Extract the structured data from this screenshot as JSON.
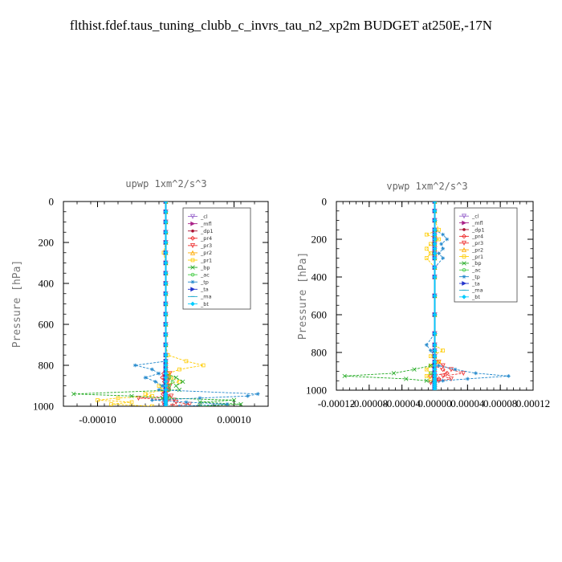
{
  "figure_title": "flthist.fdef.taus_tuning_clubb_c_invrs_tau_n2_xp2m  BUDGET at250E,-17N",
  "series_styles": [
    {
      "name": "_cl",
      "color": "#9966cc",
      "marker": "tri-down"
    },
    {
      "name": "_mfl",
      "color": "#aa2288",
      "marker": "tri-right"
    },
    {
      "name": "_dp1",
      "color": "#aa1133",
      "marker": "dot"
    },
    {
      "name": "_pr4",
      "color": "#ee2222",
      "marker": "diamond"
    },
    {
      "name": "_pr3",
      "color": "#ee3333",
      "marker": "tri-down"
    },
    {
      "name": "_pr2",
      "color": "#ffaa00",
      "marker": "tri-up"
    },
    {
      "name": "_pr1",
      "color": "#ffcc00",
      "marker": "square"
    },
    {
      "name": "_bp",
      "color": "#22aa22",
      "marker": "x"
    },
    {
      "name": "_ac",
      "color": "#44cc44",
      "marker": "circle"
    },
    {
      "name": "_tp",
      "color": "#2288cc",
      "marker": "star"
    },
    {
      "name": "_ta",
      "color": "#2233cc",
      "marker": "tri-right"
    },
    {
      "name": "_ma",
      "color": "#22aacc",
      "marker": "dash"
    },
    {
      "name": "_bt",
      "color": "#00ccff",
      "marker": "diamond-fill"
    }
  ],
  "chart_data": [
    {
      "type": "line",
      "title": "upwp   1xm^2/s^3",
      "ylabel": "Pressure [hPa]",
      "xlim": [
        -0.00015,
        0.00015
      ],
      "ylim": [
        1000,
        0
      ],
      "xticks": [
        -0.0001,
        0,
        0.0001
      ],
      "xtick_labels": [
        "-0.00010",
        "0.00000",
        "0.00010"
      ],
      "yticks": [
        0,
        200,
        400,
        600,
        800,
        1000
      ],
      "ytick_labels": [
        "0",
        "200",
        "400",
        "600",
        "800",
        "1000"
      ],
      "legend": [
        "_cl",
        "_mfl",
        "_dp1",
        "_pr4",
        "_pr3",
        "_pr2",
        "_pr1",
        "_bp",
        "_ac",
        "_tp",
        "_ta",
        "_ma",
        "_bt"
      ],
      "legend_position": "top-right",
      "levels": [
        0,
        50,
        100,
        150,
        200,
        250,
        300,
        350,
        400,
        450,
        500,
        550,
        600,
        650,
        700,
        750,
        780,
        800,
        820,
        840,
        860,
        880,
        900,
        920,
        940,
        950,
        960,
        970,
        980,
        990,
        1000
      ],
      "series": [
        {
          "name": "_cl",
          "values": [
            0,
            0,
            0,
            0,
            0,
            0,
            0,
            0,
            0,
            0,
            0,
            0,
            0,
            0,
            0,
            0,
            0,
            0,
            0,
            0,
            0,
            0,
            0,
            0,
            0,
            0,
            0,
            0,
            0,
            0,
            0
          ]
        },
        {
          "name": "_mfl",
          "values": [
            0,
            0,
            0,
            0,
            0,
            0,
            0,
            0,
            0,
            0,
            0,
            0,
            0,
            0,
            0,
            0,
            0,
            0,
            0,
            0,
            0,
            0,
            0,
            0,
            0,
            0,
            0,
            0,
            0,
            0,
            0
          ]
        },
        {
          "name": "_dp1",
          "values": [
            0,
            0,
            0,
            0,
            0,
            0,
            0,
            0,
            0,
            0,
            0,
            0,
            0,
            0,
            0,
            0,
            0,
            0,
            0,
            0,
            0,
            0,
            0,
            0,
            0,
            0,
            0,
            0,
            0,
            0,
            0
          ]
        },
        {
          "name": "_pr4",
          "values": [
            0,
            0,
            0,
            0,
            0,
            0,
            0,
            0,
            0,
            0,
            0,
            0,
            0,
            0,
            0,
            0,
            0,
            0,
            0,
            -3e-06,
            -5e-06,
            -2e-06,
            2e-06,
            4e-06,
            -4e-06,
            3e-06,
            -2e-06,
            2e-06,
            -3e-06,
            -2e-06,
            0
          ]
        },
        {
          "name": "_pr3",
          "values": [
            0,
            0,
            0,
            0,
            0,
            0,
            0,
            0,
            0,
            0,
            0,
            0,
            0,
            0,
            0,
            0,
            0,
            0,
            0,
            6e-06,
            4e-06,
            3e-06,
            6e-06,
            4e-06,
            -2e-06,
            8e-06,
            -4e-05,
            1.2e-05,
            1.5e-05,
            3.5e-05,
            1e-05
          ]
        },
        {
          "name": "_pr2",
          "values": [
            0,
            0,
            0,
            0,
            0,
            0,
            0,
            0,
            0,
            0,
            0,
            0,
            0,
            0,
            0,
            0,
            0,
            0,
            0,
            0,
            0,
            0,
            0,
            0,
            0,
            0,
            0,
            0,
            0,
            0,
            0
          ]
        },
        {
          "name": "_pr1",
          "values": [
            0,
            0,
            0,
            0,
            0,
            -3e-06,
            0,
            0,
            0,
            0,
            0,
            0,
            0,
            0,
            0,
            3e-06,
            3e-05,
            5.5e-05,
            2e-05,
            4e-06,
            8e-06,
            2e-05,
            -1e-05,
            -5e-06,
            -3e-05,
            -2e-05,
            -7e-05,
            -0.0001,
            -5e-05,
            -8e-05,
            -2e-05
          ]
        },
        {
          "name": "_bp",
          "values": [
            0,
            0,
            0,
            0,
            0,
            0,
            0,
            0,
            0,
            0,
            0,
            0,
            0,
            0,
            0,
            0,
            0,
            0,
            0,
            0,
            1.5e-05,
            2.5e-05,
            1.5e-05,
            2e-05,
            -0.000135,
            -5e-05,
            -5e-06,
            0.0001,
            5e-05,
            0.00011,
            5e-05
          ]
        },
        {
          "name": "_ac",
          "values": [
            0,
            0,
            0,
            0,
            0,
            0,
            0,
            0,
            0,
            0,
            0,
            0,
            0,
            0,
            0,
            0,
            0,
            0,
            0,
            0,
            5e-06,
            1e-05,
            5e-06,
            5e-06,
            0,
            0,
            5e-06,
            0,
            0,
            0,
            0
          ]
        },
        {
          "name": "_tp",
          "values": [
            0,
            0,
            0,
            0,
            0,
            0,
            0,
            0,
            0,
            0,
            0,
            0,
            0,
            0,
            0,
            0,
            0,
            -4.5e-05,
            -2e-05,
            -1e-05,
            -3e-05,
            -1.5e-05,
            -5e-06,
            -1e-05,
            0.000135,
            0.00012,
            5e-05,
            -2e-05,
            3e-05,
            9e-05,
            2e-05
          ]
        },
        {
          "name": "_ta",
          "values": [
            0,
            0,
            0,
            0,
            0,
            0,
            0,
            0,
            0,
            0,
            0,
            0,
            0,
            0,
            0,
            0,
            0,
            0,
            0,
            0,
            0,
            0,
            0,
            0,
            0,
            0,
            0,
            0,
            0,
            0,
            0
          ]
        },
        {
          "name": "_ma",
          "values": [
            0,
            0,
            0,
            0,
            0,
            0,
            0,
            0,
            0,
            0,
            0,
            0,
            0,
            0,
            0,
            0,
            0,
            0,
            0,
            0,
            0,
            0,
            0,
            0,
            0,
            0,
            0,
            0,
            0,
            0,
            0
          ]
        },
        {
          "name": "_bt",
          "values": [
            0,
            0,
            0,
            0,
            0,
            0,
            0,
            0,
            0,
            0,
            0,
            0,
            0,
            0,
            0,
            0,
            0,
            0,
            0,
            0,
            0,
            0,
            0,
            0,
            0,
            0,
            0,
            0,
            0,
            0,
            0
          ]
        }
      ]
    },
    {
      "type": "line",
      "title": "vpwp   1xm^2/s^3",
      "ylabel": "Pressure [hPa]",
      "xlim": [
        -0.00012,
        0.00012
      ],
      "ylim": [
        1000,
        0
      ],
      "xticks": [
        -0.00012,
        -8e-05,
        -4e-05,
        0,
        4e-05,
        8e-05,
        0.00012
      ],
      "xtick_labels": [
        "-0.00012",
        "-0.00008",
        "-0.00004",
        "0.00000",
        "0.00004",
        "0.00008",
        "0.00012"
      ],
      "yticks": [
        0,
        200,
        400,
        600,
        800,
        1000
      ],
      "ytick_labels": [
        "0",
        "200",
        "400",
        "600",
        "800",
        "1000"
      ],
      "legend": [
        "_cl",
        "_mfl",
        "_dp1",
        "_pr4",
        "_pr3",
        "_pr2",
        "_pr1",
        "_bp",
        "_ac",
        "_tp",
        "_ta",
        "_ma",
        "_bt"
      ],
      "legend_position": "top-right",
      "levels": [
        0,
        50,
        100,
        150,
        175,
        200,
        225,
        250,
        275,
        300,
        350,
        400,
        500,
        600,
        700,
        760,
        790,
        820,
        850,
        870,
        890,
        910,
        925,
        940,
        950,
        960,
        970,
        980,
        990,
        1000
      ],
      "series": [
        {
          "name": "_cl",
          "values": [
            0,
            0,
            0,
            0,
            0,
            0,
            0,
            0,
            0,
            0,
            0,
            0,
            0,
            0,
            0,
            0,
            0,
            0,
            0,
            0,
            0,
            0,
            0,
            0,
            0,
            0,
            0,
            0,
            0,
            0
          ]
        },
        {
          "name": "_mfl",
          "values": [
            0,
            0,
            0,
            0,
            0,
            0,
            0,
            0,
            0,
            0,
            0,
            0,
            0,
            0,
            0,
            0,
            0,
            0,
            0,
            0,
            0,
            0,
            0,
            0,
            0,
            0,
            0,
            0,
            0,
            0
          ]
        },
        {
          "name": "_dp1",
          "values": [
            0,
            0,
            0,
            0,
            0,
            0,
            0,
            0,
            0,
            0,
            0,
            0,
            0,
            0,
            0,
            0,
            0,
            0,
            0,
            0,
            0,
            0,
            0,
            0,
            0,
            0,
            0,
            0,
            0,
            0
          ]
        },
        {
          "name": "_pr4",
          "values": [
            0,
            0,
            0,
            0,
            0,
            0,
            0,
            0,
            0,
            0,
            0,
            0,
            0,
            0,
            0,
            0,
            0,
            0,
            0,
            0,
            1e-05,
            1.5e-05,
            -5e-06,
            5e-06,
            0,
            0,
            0,
            0,
            0,
            0
          ]
        },
        {
          "name": "_pr3",
          "values": [
            0,
            0,
            0,
            0,
            0,
            0,
            0,
            0,
            0,
            0,
            0,
            0,
            0,
            0,
            0,
            0,
            0,
            0,
            5e-06,
            1e-05,
            2e-05,
            3.5e-05,
            1e-05,
            2e-05,
            5e-06,
            -5e-06,
            0,
            0,
            0,
            0
          ]
        },
        {
          "name": "_pr2",
          "values": [
            0,
            0,
            0,
            0,
            0,
            0,
            0,
            0,
            0,
            0,
            0,
            0,
            0,
            0,
            0,
            0,
            0,
            0,
            0,
            0,
            0,
            0,
            0,
            0,
            0,
            0,
            0,
            0,
            0,
            0
          ]
        },
        {
          "name": "_pr1",
          "values": [
            0,
            0,
            0,
            5e-06,
            -1e-05,
            5e-06,
            -5e-06,
            -1e-05,
            -5e-06,
            -1e-05,
            0,
            0,
            0,
            0,
            0,
            0,
            1e-05,
            -5e-06,
            5e-06,
            -5e-06,
            -1e-05,
            -5e-06,
            -1e-05,
            -5e-06,
            0,
            0,
            0,
            0,
            0,
            0
          ]
        },
        {
          "name": "_bp",
          "values": [
            0,
            0,
            0,
            0,
            0,
            0,
            0,
            0,
            0,
            0,
            0,
            0,
            0,
            0,
            0,
            0,
            0,
            0,
            0,
            -5e-06,
            -2.5e-05,
            -5e-05,
            -0.00011,
            -3.5e-05,
            -1e-05,
            0,
            0,
            0,
            0,
            0
          ]
        },
        {
          "name": "_ac",
          "values": [
            0,
            0,
            0,
            0,
            0,
            0,
            0,
            0,
            0,
            0,
            0,
            0,
            0,
            0,
            0,
            0,
            0,
            0,
            0,
            0,
            0,
            -5e-06,
            0,
            0,
            0,
            0,
            0,
            0,
            0,
            0
          ]
        },
        {
          "name": "_tp",
          "values": [
            0,
            0,
            0,
            0,
            1e-05,
            1.5e-05,
            8e-06,
            1e-05,
            5e-06,
            1e-05,
            0,
            0,
            0,
            0,
            0,
            -1e-05,
            -5e-06,
            0,
            0,
            5e-06,
            2.5e-05,
            5e-05,
            9e-05,
            4e-05,
            1e-05,
            0,
            0,
            0,
            0,
            0
          ]
        },
        {
          "name": "_ta",
          "values": [
            0,
            0,
            0,
            0,
            0,
            0,
            0,
            0,
            0,
            0,
            0,
            0,
            0,
            0,
            0,
            0,
            0,
            0,
            0,
            0,
            0,
            0,
            0,
            0,
            0,
            0,
            0,
            0,
            0,
            0
          ]
        },
        {
          "name": "_ma",
          "values": [
            0,
            0,
            0,
            0,
            0,
            0,
            0,
            0,
            0,
            0,
            0,
            0,
            0,
            0,
            0,
            0,
            0,
            0,
            0,
            0,
            0,
            0,
            0,
            0,
            0,
            0,
            0,
            0,
            0,
            0
          ]
        },
        {
          "name": "_bt",
          "values": [
            0,
            0,
            0,
            0,
            0,
            0,
            0,
            0,
            0,
            0,
            0,
            0,
            0,
            0,
            0,
            0,
            0,
            0,
            0,
            0,
            0,
            0,
            0,
            0,
            0,
            0,
            0,
            0,
            0,
            0
          ]
        }
      ]
    }
  ]
}
